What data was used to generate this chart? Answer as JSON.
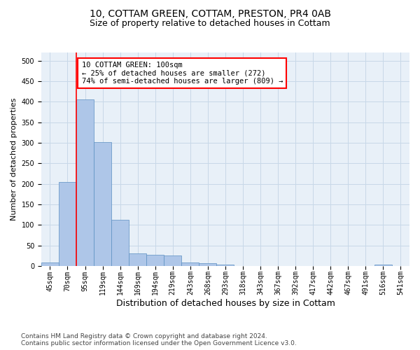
{
  "title1": "10, COTTAM GREEN, COTTAM, PRESTON, PR4 0AB",
  "title2": "Size of property relative to detached houses in Cottam",
  "xlabel": "Distribution of detached houses by size in Cottam",
  "ylabel": "Number of detached properties",
  "bar_labels": [
    "45sqm",
    "70sqm",
    "95sqm",
    "119sqm",
    "144sqm",
    "169sqm",
    "194sqm",
    "219sqm",
    "243sqm",
    "268sqm",
    "293sqm",
    "318sqm",
    "343sqm",
    "367sqm",
    "392sqm",
    "417sqm",
    "442sqm",
    "467sqm",
    "491sqm",
    "516sqm",
    "541sqm"
  ],
  "bar_values": [
    8,
    205,
    405,
    302,
    112,
    30,
    27,
    25,
    8,
    6,
    3,
    0,
    0,
    0,
    0,
    0,
    0,
    0,
    0,
    4,
    0
  ],
  "bar_color": "#aec6e8",
  "bar_edge_color": "#5a8fc2",
  "annotation_text": "10 COTTAM GREEN: 100sqm\n← 25% of detached houses are smaller (272)\n74% of semi-detached houses are larger (809) →",
  "annotation_box_color": "white",
  "annotation_box_edge_color": "red",
  "vline_color": "red",
  "vline_x_index": 2,
  "ylim": [
    0,
    520
  ],
  "yticks": [
    0,
    50,
    100,
    150,
    200,
    250,
    300,
    350,
    400,
    450,
    500
  ],
  "grid_color": "#c8d8e8",
  "bg_color": "#e8f0f8",
  "footnote": "Contains HM Land Registry data © Crown copyright and database right 2024.\nContains public sector information licensed under the Open Government Licence v3.0.",
  "title1_fontsize": 10,
  "title2_fontsize": 9,
  "xlabel_fontsize": 9,
  "ylabel_fontsize": 8,
  "tick_fontsize": 7,
  "annot_fontsize": 7.5,
  "footnote_fontsize": 6.5
}
